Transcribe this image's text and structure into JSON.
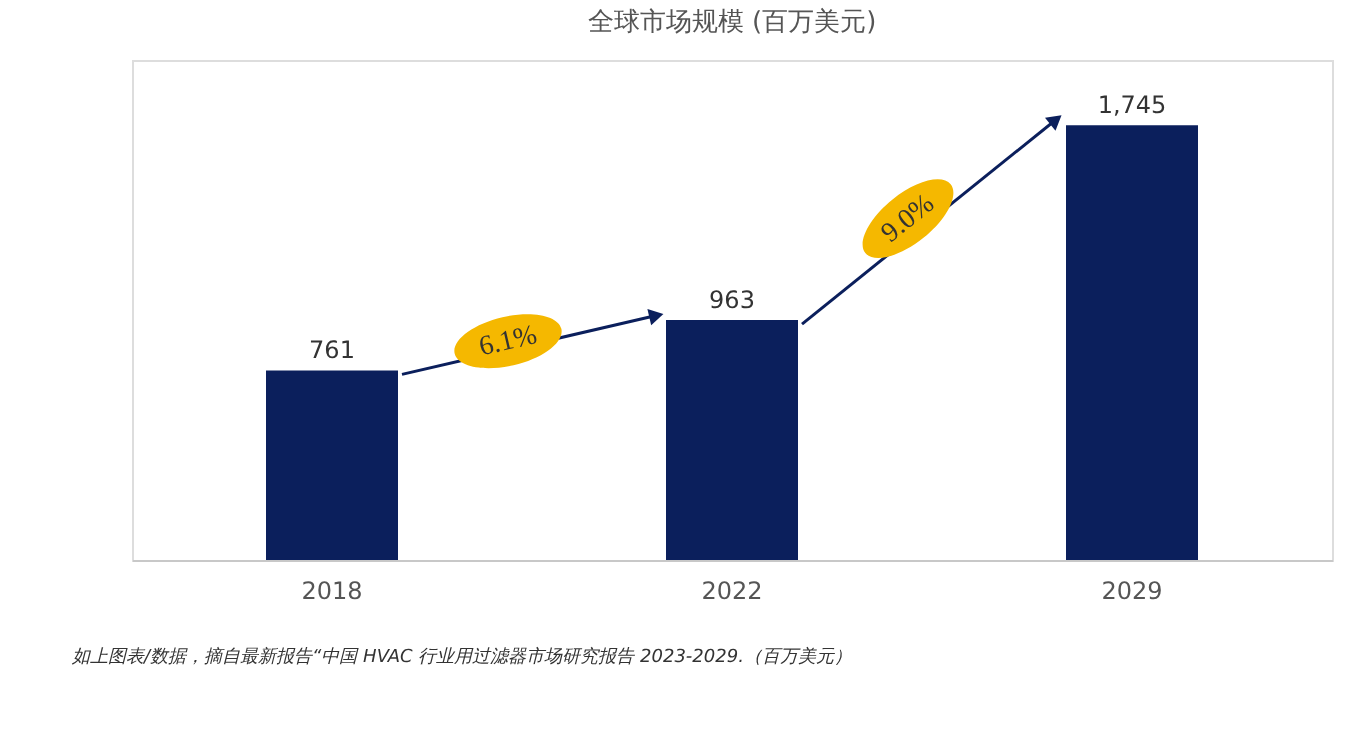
{
  "chart_data": {
    "type": "bar",
    "title": "全球市场规模 (百万美元)",
    "categories": [
      "2018",
      "2022",
      "2029"
    ],
    "values": [
      761,
      963,
      1745
    ],
    "color": "#0b1f5c",
    "value_labels": [
      "761",
      "963",
      "1,745"
    ],
    "annotations": [
      "6.1%",
      "9.0%",
      "如上图表/数据，摘自最新报告“中国 HVAC 行业用过滤器市场研究报告 2023-2029.（百万美元）"
    ]
  }
}
